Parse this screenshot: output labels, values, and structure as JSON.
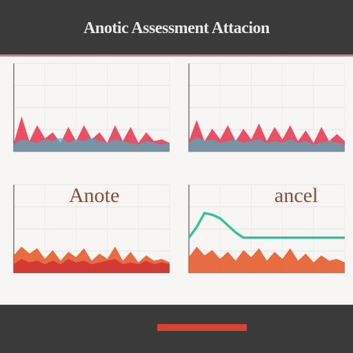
{
  "title": "Anotic Assessment Attacion",
  "colors": {
    "background": "#3a3a3a",
    "board": "#f7f6f5",
    "accent": "#e0707a",
    "red": "#e8334a",
    "teal": "#38b8c9",
    "orange": "#e4541f",
    "dark_red": "#c8202c",
    "green": "#2fc39a"
  },
  "chart_data": [
    {
      "type": "area",
      "panel": "top-left",
      "title": "",
      "xlabel": "",
      "ylabel": "",
      "ylim": [
        0,
        100
      ],
      "grid": true,
      "x": [
        0,
        1,
        2,
        3,
        4,
        5,
        6,
        7,
        8,
        9,
        10,
        11,
        12,
        13,
        14,
        15,
        16,
        17,
        18,
        19,
        20
      ],
      "series": [
        {
          "color": "#e8334a",
          "values": [
            10,
            40,
            12,
            30,
            15,
            22,
            10,
            28,
            12,
            30,
            14,
            22,
            10,
            30,
            12,
            28,
            10,
            22,
            12,
            14,
            10
          ]
        },
        {
          "color": "#38b8c9",
          "values": [
            8,
            14,
            12,
            10,
            14,
            12,
            16,
            10,
            14,
            12,
            16,
            12,
            10,
            14,
            12,
            10,
            8,
            12,
            10,
            8,
            10
          ]
        }
      ]
    },
    {
      "type": "area",
      "panel": "top-right",
      "title": "",
      "xlabel": "",
      "ylabel": "",
      "ylim": [
        0,
        100
      ],
      "grid": true,
      "x": [
        0,
        1,
        2,
        3,
        4,
        5,
        6,
        7,
        8,
        9,
        10,
        11,
        12,
        13,
        14,
        15,
        16,
        17,
        18,
        19,
        20
      ],
      "series": [
        {
          "color": "#e8334a",
          "values": [
            12,
            36,
            12,
            26,
            14,
            30,
            12,
            26,
            14,
            32,
            12,
            28,
            14,
            30,
            12,
            24,
            10,
            28,
            12,
            20,
            12
          ]
        },
        {
          "color": "#38b8c9",
          "values": [
            10,
            16,
            12,
            14,
            10,
            12,
            14,
            10,
            12,
            14,
            10,
            12,
            10,
            14,
            10,
            12,
            8,
            10,
            12,
            10,
            8
          ]
        }
      ]
    },
    {
      "type": "area",
      "panel": "bottom-left",
      "title": "Anote",
      "xlabel": "",
      "ylabel": "",
      "ylim": [
        0,
        100
      ],
      "grid": true,
      "x": [
        0,
        1,
        2,
        3,
        4,
        5,
        6,
        7,
        8,
        9,
        10,
        11,
        12,
        13,
        14,
        15,
        16,
        17,
        18,
        19,
        20
      ],
      "series": [
        {
          "color": "#e4541f",
          "values": [
            20,
            30,
            22,
            28,
            16,
            26,
            14,
            24,
            18,
            28,
            14,
            22,
            16,
            30,
            14,
            24,
            12,
            20,
            14,
            16,
            12
          ]
        },
        {
          "color": "#c8202c",
          "values": [
            10,
            16,
            12,
            14,
            10,
            14,
            10,
            16,
            12,
            14,
            10,
            12,
            14,
            16,
            10,
            12,
            10,
            14,
            10,
            12,
            10
          ]
        }
      ]
    },
    {
      "type": "line",
      "panel": "bottom-right",
      "title": "ancel",
      "xlabel": "",
      "ylabel": "",
      "ylim": [
        0,
        100
      ],
      "grid": true,
      "x": [
        0,
        1,
        2,
        3,
        4,
        5,
        6,
        7,
        8,
        9,
        10,
        11,
        12,
        13,
        14,
        15,
        16,
        17,
        18,
        19,
        20
      ],
      "series": [
        {
          "color": "#e4541f",
          "values": [
            18,
            30,
            20,
            26,
            16,
            24,
            14,
            26,
            18,
            28,
            14,
            24,
            16,
            28,
            14,
            22,
            12,
            20,
            14,
            16,
            12
          ]
        },
        {
          "color": "#2fc39a",
          "values": [
            40,
            52,
            68,
            66,
            62,
            54,
            46,
            40,
            40,
            40,
            40,
            40,
            40,
            40,
            40,
            40,
            40,
            40,
            40,
            40,
            40
          ]
        }
      ]
    }
  ]
}
